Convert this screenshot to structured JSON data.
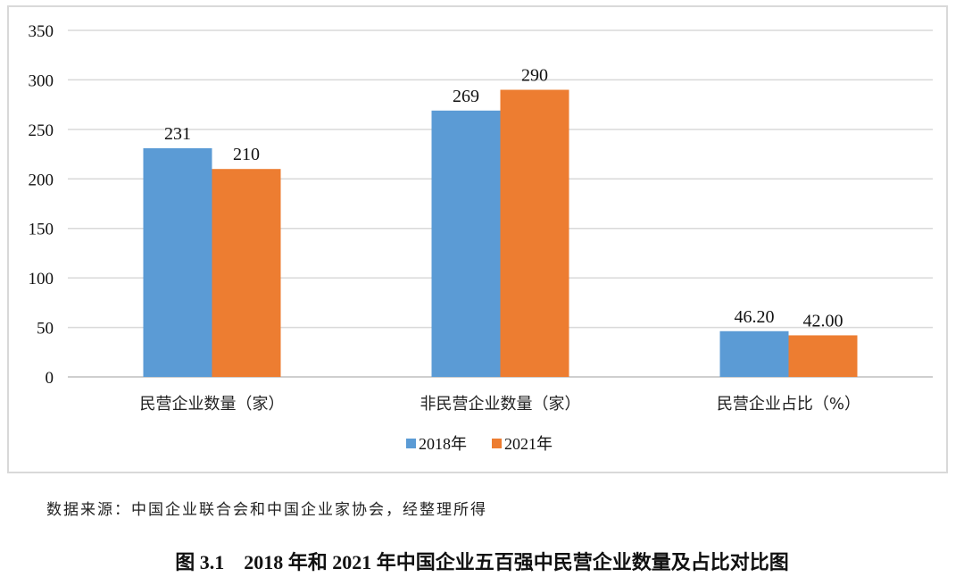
{
  "chart_data": {
    "type": "bar",
    "categories": [
      "民营企业数量（家）",
      "非民营企业数量（家）",
      "民营企业占比（%）"
    ],
    "series": [
      {
        "name": "2018年",
        "values": [
          231,
          269,
          46.2
        ],
        "labels": [
          "231",
          "269",
          "46.20"
        ],
        "color": "#5b9bd5"
      },
      {
        "name": "2021年",
        "values": [
          210,
          290,
          42.0
        ],
        "labels": [
          "210",
          "290",
          "42.00"
        ],
        "color": "#ed7d31"
      }
    ],
    "ylim": [
      0,
      350
    ],
    "yticks": [
      0,
      50,
      100,
      150,
      200,
      250,
      300,
      350
    ],
    "grid": true,
    "legend": "bottom",
    "title": "图 3.1　2018 年和 2021 年中国企业五百强中民营企业数量及占比对比图",
    "source": "数据来源：中国企业联合会和中国企业家协会，经整理所得"
  }
}
